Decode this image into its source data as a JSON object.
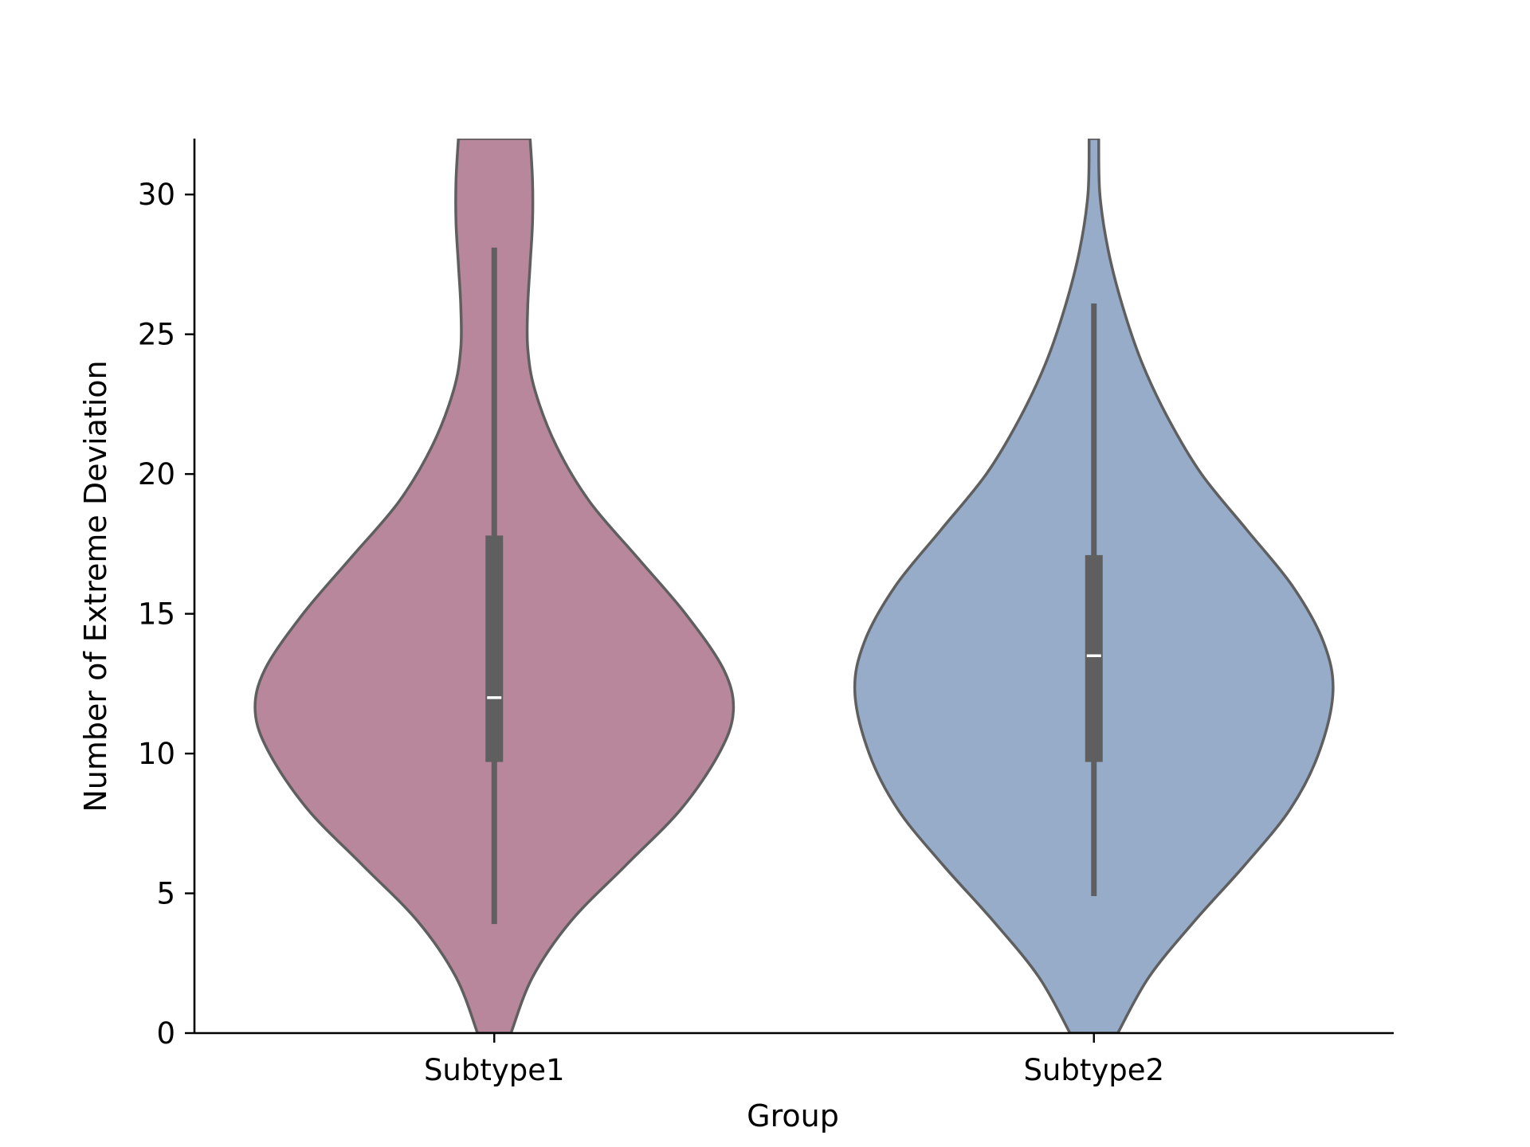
{
  "chart_data": {
    "type": "violin",
    "xlabel": "Group",
    "ylabel": "Number of Extreme Deviation",
    "ylim": [
      0,
      32
    ],
    "yticks": [
      0,
      5,
      10,
      15,
      20,
      25,
      30
    ],
    "categories": [
      "Subtype1",
      "Subtype2"
    ],
    "series": [
      {
        "category": "Subtype1",
        "color": "#b8879c",
        "density_profile": [
          [
            0,
            0.07
          ],
          [
            2,
            0.16
          ],
          [
            4,
            0.32
          ],
          [
            6,
            0.55
          ],
          [
            8,
            0.78
          ],
          [
            10,
            0.94
          ],
          [
            11.5,
            1.0
          ],
          [
            13,
            0.96
          ],
          [
            15,
            0.8
          ],
          [
            17,
            0.6
          ],
          [
            19,
            0.4
          ],
          [
            21,
            0.26
          ],
          [
            23,
            0.17
          ],
          [
            24.5,
            0.14
          ],
          [
            26,
            0.14
          ],
          [
            27.5,
            0.15
          ],
          [
            29,
            0.16
          ],
          [
            30.5,
            0.16
          ],
          [
            32,
            0.15
          ]
        ],
        "whisker": [
          3.9,
          28.1
        ],
        "quartiles": [
          9.7,
          17.8
        ],
        "median": 12
      },
      {
        "category": "Subtype2",
        "color": "#96acc9",
        "density_profile": [
          [
            0,
            0.1
          ],
          [
            2,
            0.23
          ],
          [
            4,
            0.42
          ],
          [
            6,
            0.63
          ],
          [
            8,
            0.82
          ],
          [
            10,
            0.94
          ],
          [
            12.2,
            1.0
          ],
          [
            14,
            0.96
          ],
          [
            16,
            0.83
          ],
          [
            18,
            0.64
          ],
          [
            20,
            0.45
          ],
          [
            22,
            0.31
          ],
          [
            24,
            0.2
          ],
          [
            26,
            0.12
          ],
          [
            28,
            0.06
          ],
          [
            30,
            0.025
          ],
          [
            32,
            0.02
          ]
        ],
        "whisker": [
          4.9,
          26.1
        ],
        "quartiles": [
          9.7,
          17.1
        ],
        "median": 13.5
      }
    ]
  }
}
